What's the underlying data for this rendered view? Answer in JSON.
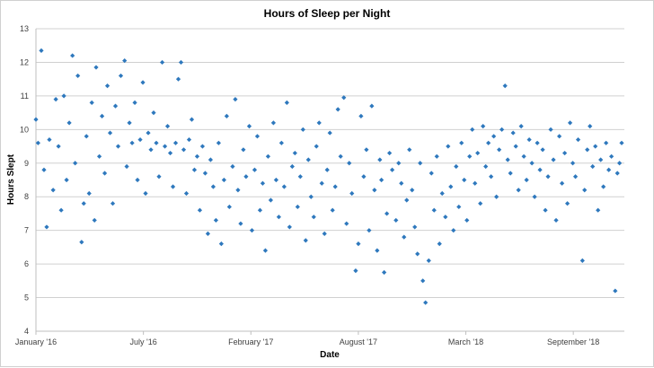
{
  "chart_data": {
    "type": "scatter",
    "title": "Hours of Sleep per Night",
    "xlabel": "Date",
    "ylabel": "Hours Slept",
    "ylim": [
      4,
      13
    ],
    "yticks": [
      4,
      5,
      6,
      7,
      8,
      9,
      10,
      11,
      12,
      13
    ],
    "xlim": [
      "2016-01-01",
      "2018-12-31"
    ],
    "xticks": [
      {
        "date": "2016-01-01",
        "label": "January '16"
      },
      {
        "date": "2016-07-19",
        "label": "July '16"
      },
      {
        "date": "2017-02-04",
        "label": "February '17"
      },
      {
        "date": "2017-08-23",
        "label": "August '17"
      },
      {
        "date": "2018-03-11",
        "label": "March '18"
      },
      {
        "date": "2018-09-27",
        "label": "September '18"
      }
    ],
    "grid": true,
    "marker": "diamond",
    "color": "#2e78bd",
    "points": [
      [
        "2016-01-01",
        10.3
      ],
      [
        "2016-01-05",
        9.6
      ],
      [
        "2016-01-11",
        12.35
      ],
      [
        "2016-01-16",
        8.8
      ],
      [
        "2016-01-21",
        7.1
      ],
      [
        "2016-01-26",
        9.7
      ],
      [
        "2016-02-02",
        8.2
      ],
      [
        "2016-02-07",
        10.9
      ],
      [
        "2016-02-12",
        9.5
      ],
      [
        "2016-02-17",
        7.6
      ],
      [
        "2016-02-22",
        11.0
      ],
      [
        "2016-02-27",
        8.5
      ],
      [
        "2016-03-03",
        10.2
      ],
      [
        "2016-03-09",
        12.2
      ],
      [
        "2016-03-14",
        9.0
      ],
      [
        "2016-03-19",
        11.6
      ],
      [
        "2016-03-26",
        6.65
      ],
      [
        "2016-03-30",
        7.8
      ],
      [
        "2016-04-04",
        9.8
      ],
      [
        "2016-04-09",
        8.1
      ],
      [
        "2016-04-14",
        10.8
      ],
      [
        "2016-04-19",
        7.3
      ],
      [
        "2016-04-22",
        11.85
      ],
      [
        "2016-04-28",
        9.2
      ],
      [
        "2016-05-03",
        10.4
      ],
      [
        "2016-05-08",
        8.7
      ],
      [
        "2016-05-13",
        11.3
      ],
      [
        "2016-05-18",
        9.9
      ],
      [
        "2016-05-23",
        7.8
      ],
      [
        "2016-05-28",
        10.7
      ],
      [
        "2016-06-02",
        9.5
      ],
      [
        "2016-06-07",
        11.6
      ],
      [
        "2016-06-14",
        12.05
      ],
      [
        "2016-06-18",
        8.9
      ],
      [
        "2016-06-23",
        10.2
      ],
      [
        "2016-06-28",
        9.6
      ],
      [
        "2016-07-03",
        10.8
      ],
      [
        "2016-07-08",
        8.5
      ],
      [
        "2016-07-13",
        9.7
      ],
      [
        "2016-07-18",
        11.4
      ],
      [
        "2016-07-23",
        8.1
      ],
      [
        "2016-07-28",
        9.9
      ],
      [
        "2016-08-02",
        9.4
      ],
      [
        "2016-08-07",
        10.5
      ],
      [
        "2016-08-12",
        9.6
      ],
      [
        "2016-08-17",
        8.6
      ],
      [
        "2016-08-23",
        12.0
      ],
      [
        "2016-08-28",
        9.5
      ],
      [
        "2016-09-02",
        10.1
      ],
      [
        "2016-09-07",
        9.3
      ],
      [
        "2016-09-12",
        8.3
      ],
      [
        "2016-09-17",
        9.6
      ],
      [
        "2016-09-22",
        11.5
      ],
      [
        "2016-09-27",
        12.0
      ],
      [
        "2016-10-02",
        9.4
      ],
      [
        "2016-10-07",
        8.1
      ],
      [
        "2016-10-12",
        9.7
      ],
      [
        "2016-10-17",
        10.3
      ],
      [
        "2016-10-22",
        8.8
      ],
      [
        "2016-10-27",
        9.2
      ],
      [
        "2016-11-01",
        7.6
      ],
      [
        "2016-11-06",
        9.5
      ],
      [
        "2016-11-11",
        8.7
      ],
      [
        "2016-11-16",
        6.9
      ],
      [
        "2016-11-21",
        9.1
      ],
      [
        "2016-11-26",
        8.3
      ],
      [
        "2016-12-01",
        7.3
      ],
      [
        "2016-12-06",
        9.6
      ],
      [
        "2016-12-11",
        6.6
      ],
      [
        "2016-12-16",
        8.5
      ],
      [
        "2016-12-21",
        10.4
      ],
      [
        "2016-12-26",
        7.7
      ],
      [
        "2017-01-01",
        8.9
      ],
      [
        "2017-01-06",
        10.9
      ],
      [
        "2017-01-11",
        8.2
      ],
      [
        "2017-01-16",
        7.2
      ],
      [
        "2017-01-21",
        9.4
      ],
      [
        "2017-01-26",
        8.6
      ],
      [
        "2017-02-01",
        10.1
      ],
      [
        "2017-02-06",
        7.0
      ],
      [
        "2017-02-11",
        8.8
      ],
      [
        "2017-02-16",
        9.8
      ],
      [
        "2017-02-21",
        7.6
      ],
      [
        "2017-02-26",
        8.4
      ],
      [
        "2017-03-03",
        6.4
      ],
      [
        "2017-03-08",
        9.2
      ],
      [
        "2017-03-13",
        7.9
      ],
      [
        "2017-03-18",
        10.2
      ],
      [
        "2017-03-23",
        8.5
      ],
      [
        "2017-03-28",
        7.4
      ],
      [
        "2017-04-02",
        9.6
      ],
      [
        "2017-04-07",
        8.3
      ],
      [
        "2017-04-12",
        10.8
      ],
      [
        "2017-04-17",
        7.1
      ],
      [
        "2017-04-22",
        8.9
      ],
      [
        "2017-04-27",
        9.3
      ],
      [
        "2017-05-02",
        7.7
      ],
      [
        "2017-05-07",
        8.6
      ],
      [
        "2017-05-12",
        10.0
      ],
      [
        "2017-05-17",
        6.7
      ],
      [
        "2017-05-22",
        9.1
      ],
      [
        "2017-05-27",
        8.0
      ],
      [
        "2017-06-01",
        7.4
      ],
      [
        "2017-06-06",
        9.5
      ],
      [
        "2017-06-11",
        10.2
      ],
      [
        "2017-06-16",
        8.4
      ],
      [
        "2017-06-21",
        6.9
      ],
      [
        "2017-06-26",
        8.8
      ],
      [
        "2017-07-01",
        9.9
      ],
      [
        "2017-07-06",
        7.6
      ],
      [
        "2017-07-11",
        8.3
      ],
      [
        "2017-07-16",
        10.6
      ],
      [
        "2017-07-21",
        9.2
      ],
      [
        "2017-07-27",
        10.95
      ],
      [
        "2017-08-01",
        7.2
      ],
      [
        "2017-08-06",
        9.0
      ],
      [
        "2017-08-11",
        8.1
      ],
      [
        "2017-08-18",
        5.8
      ],
      [
        "2017-08-23",
        6.6
      ],
      [
        "2017-08-28",
        10.4
      ],
      [
        "2017-09-02",
        8.6
      ],
      [
        "2017-09-07",
        9.4
      ],
      [
        "2017-09-12",
        7.0
      ],
      [
        "2017-09-17",
        10.7
      ],
      [
        "2017-09-22",
        8.2
      ],
      [
        "2017-09-27",
        6.4
      ],
      [
        "2017-10-02",
        9.1
      ],
      [
        "2017-10-05",
        8.5
      ],
      [
        "2017-10-10",
        5.75
      ],
      [
        "2017-10-15",
        7.5
      ],
      [
        "2017-10-20",
        9.3
      ],
      [
        "2017-10-25",
        8.8
      ],
      [
        "2017-11-01",
        7.3
      ],
      [
        "2017-11-06",
        9.0
      ],
      [
        "2017-11-11",
        8.4
      ],
      [
        "2017-11-16",
        6.8
      ],
      [
        "2017-11-21",
        7.9
      ],
      [
        "2017-11-26",
        9.4
      ],
      [
        "2017-12-01",
        8.2
      ],
      [
        "2017-12-06",
        7.1
      ],
      [
        "2017-12-11",
        6.3
      ],
      [
        "2017-12-16",
        9.0
      ],
      [
        "2017-12-21",
        5.5
      ],
      [
        "2017-12-26",
        4.85
      ],
      [
        "2018-01-01",
        6.1
      ],
      [
        "2018-01-06",
        8.7
      ],
      [
        "2018-01-11",
        7.6
      ],
      [
        "2018-01-16",
        9.2
      ],
      [
        "2018-01-21",
        6.6
      ],
      [
        "2018-01-26",
        8.1
      ],
      [
        "2018-02-01",
        7.4
      ],
      [
        "2018-02-06",
        9.5
      ],
      [
        "2018-02-11",
        8.3
      ],
      [
        "2018-02-16",
        7.0
      ],
      [
        "2018-02-21",
        8.9
      ],
      [
        "2018-02-26",
        7.7
      ],
      [
        "2018-03-03",
        9.6
      ],
      [
        "2018-03-08",
        8.5
      ],
      [
        "2018-03-13",
        7.3
      ],
      [
        "2018-03-18",
        9.2
      ],
      [
        "2018-03-23",
        10.0
      ],
      [
        "2018-03-28",
        8.4
      ],
      [
        "2018-04-02",
        9.3
      ],
      [
        "2018-04-07",
        7.8
      ],
      [
        "2018-04-12",
        10.1
      ],
      [
        "2018-04-17",
        8.9
      ],
      [
        "2018-04-22",
        9.6
      ],
      [
        "2018-04-27",
        8.6
      ],
      [
        "2018-05-02",
        9.8
      ],
      [
        "2018-05-07",
        8.0
      ],
      [
        "2018-05-12",
        9.4
      ],
      [
        "2018-05-17",
        10.0
      ],
      [
        "2018-05-23",
        11.3
      ],
      [
        "2018-05-28",
        9.1
      ],
      [
        "2018-06-02",
        8.7
      ],
      [
        "2018-06-07",
        9.9
      ],
      [
        "2018-06-12",
        9.5
      ],
      [
        "2018-06-17",
        8.2
      ],
      [
        "2018-06-22",
        10.1
      ],
      [
        "2018-06-27",
        9.2
      ],
      [
        "2018-07-02",
        8.5
      ],
      [
        "2018-07-07",
        9.7
      ],
      [
        "2018-07-12",
        9.0
      ],
      [
        "2018-07-17",
        8.0
      ],
      [
        "2018-07-22",
        9.6
      ],
      [
        "2018-07-27",
        8.8
      ],
      [
        "2018-08-01",
        9.4
      ],
      [
        "2018-08-06",
        7.6
      ],
      [
        "2018-08-11",
        8.6
      ],
      [
        "2018-08-16",
        10.0
      ],
      [
        "2018-08-21",
        9.1
      ],
      [
        "2018-08-26",
        7.3
      ],
      [
        "2018-09-01",
        9.8
      ],
      [
        "2018-09-06",
        8.4
      ],
      [
        "2018-09-11",
        9.3
      ],
      [
        "2018-09-16",
        7.8
      ],
      [
        "2018-09-21",
        10.2
      ],
      [
        "2018-09-26",
        9.0
      ],
      [
        "2018-10-01",
        8.6
      ],
      [
        "2018-10-06",
        9.7
      ],
      [
        "2018-10-14",
        6.1
      ],
      [
        "2018-10-18",
        8.2
      ],
      [
        "2018-10-23",
        9.4
      ],
      [
        "2018-10-28",
        10.1
      ],
      [
        "2018-11-02",
        8.9
      ],
      [
        "2018-11-07",
        9.5
      ],
      [
        "2018-11-12",
        7.6
      ],
      [
        "2018-11-17",
        9.1
      ],
      [
        "2018-11-22",
        8.3
      ],
      [
        "2018-11-27",
        9.6
      ],
      [
        "2018-12-02",
        8.8
      ],
      [
        "2018-12-07",
        9.2
      ],
      [
        "2018-12-14",
        5.2
      ],
      [
        "2018-12-18",
        8.7
      ],
      [
        "2018-12-22",
        9.0
      ],
      [
        "2018-12-26",
        9.6
      ]
    ]
  }
}
